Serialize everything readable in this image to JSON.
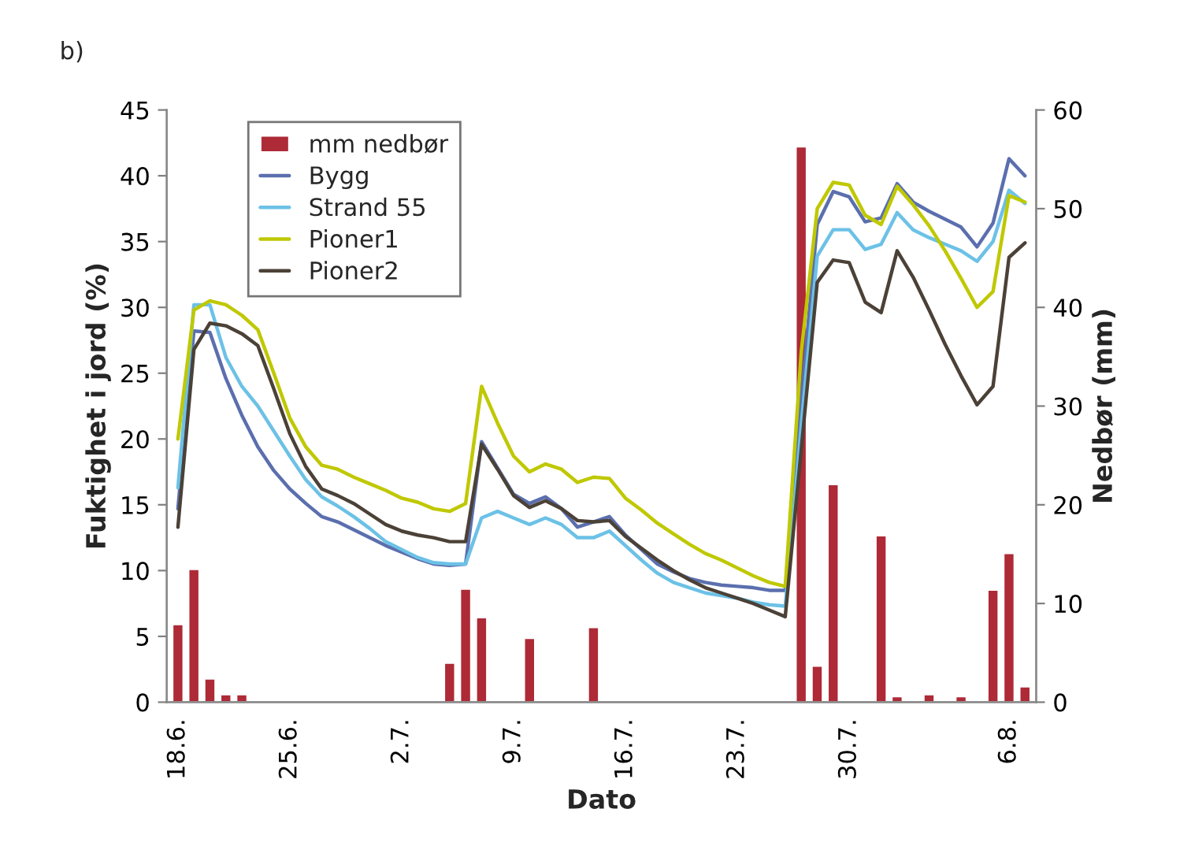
{
  "chart_data": {
    "type": "line",
    "annotations": [
      "b)"
    ],
    "xlabel": "Dato",
    "ylabel": "Fuktighet i jord (%)",
    "y2label": "Nedbør (mm)",
    "categories": [
      "18.6.",
      null,
      null,
      null,
      null,
      null,
      null,
      "25.6.",
      null,
      null,
      null,
      null,
      null,
      null,
      "2.7.",
      null,
      null,
      null,
      null,
      null,
      null,
      "9.7.",
      null,
      null,
      null,
      null,
      null,
      null,
      "16.7.",
      null,
      null,
      null,
      null,
      null,
      null,
      "23.7.",
      null,
      null,
      null,
      null,
      null,
      null,
      "30.7.",
      null,
      null,
      null,
      null,
      null,
      null,
      null,
      null,
      null,
      "6.8.",
      null
    ],
    "series": [
      {
        "name": "mm nedbør",
        "type": "bar",
        "axis": "y2",
        "color": "#ad2a36",
        "values": [
          7.9,
          13.5,
          2.4,
          0.8,
          0.8,
          null,
          null,
          null,
          null,
          null,
          null,
          null,
          null,
          null,
          null,
          null,
          null,
          4.0,
          11.5,
          8.6,
          null,
          null,
          6.5,
          null,
          null,
          null,
          7.6,
          0.1,
          null,
          null,
          null,
          null,
          null,
          null,
          null,
          null,
          null,
          null,
          null,
          56.3,
          3.7,
          22.1,
          null,
          null,
          16.9,
          0.6,
          null,
          0.8,
          0.2,
          0.6,
          null,
          11.4,
          15.1,
          1.6
        ]
      },
      {
        "name": "Bygg",
        "color": "#5b6fae",
        "values": [
          14.7,
          28.2,
          28.1,
          24.6,
          21.8,
          19.4,
          17.6,
          16.2,
          15.1,
          14.1,
          13.7,
          13.1,
          12.5,
          11.9,
          11.4,
          10.9,
          10.5,
          10.4,
          10.5,
          19.8,
          17.8,
          15.8,
          15.1,
          15.6,
          14.7,
          13.3,
          13.7,
          14.1,
          12.7,
          11.6,
          10.5,
          9.9,
          9.4,
          9.1,
          8.9,
          8.8,
          8.7,
          8.5,
          8.5,
          23.0,
          36.3,
          38.8,
          38.4,
          36.5,
          36.8,
          39.4,
          38.0,
          37.3,
          36.7,
          36.1,
          34.6,
          36.4,
          41.3,
          40.0
        ]
      },
      {
        "name": "Strand 55",
        "color": "#6cc1e6",
        "values": [
          16.3,
          30.2,
          30.2,
          26.2,
          24.0,
          22.5,
          20.6,
          18.7,
          16.9,
          15.6,
          14.9,
          14.1,
          13.2,
          12.2,
          11.6,
          11.0,
          10.6,
          10.5,
          10.5,
          14.0,
          14.5,
          14.0,
          13.5,
          14.0,
          13.5,
          12.5,
          12.5,
          13.0,
          11.9,
          10.8,
          9.8,
          9.1,
          8.7,
          8.3,
          8.1,
          7.9,
          7.6,
          7.4,
          7.3,
          21.0,
          33.9,
          35.9,
          35.9,
          34.4,
          34.8,
          37.2,
          35.9,
          35.3,
          34.8,
          34.3,
          33.5,
          35.0,
          38.9,
          37.9
        ]
      },
      {
        "name": "Pioner1",
        "color": "#bfc800",
        "values": [
          20.0,
          29.8,
          30.5,
          30.2,
          29.4,
          28.3,
          25.0,
          21.6,
          19.4,
          18.0,
          17.7,
          17.1,
          16.6,
          16.1,
          15.5,
          15.2,
          14.7,
          14.5,
          15.1,
          24.0,
          21.2,
          18.7,
          17.5,
          18.1,
          17.7,
          16.7,
          17.1,
          17.0,
          15.5,
          14.6,
          13.6,
          12.8,
          12.0,
          11.3,
          10.8,
          10.2,
          9.6,
          9.1,
          8.8,
          26.6,
          37.5,
          39.5,
          39.3,
          37.0,
          36.3,
          39.2,
          37.8,
          36.2,
          34.3,
          32.2,
          30.0,
          31.2,
          38.5,
          38.0
        ]
      },
      {
        "name": "Pioner2",
        "color": "#4b4137",
        "values": [
          13.3,
          26.8,
          28.8,
          28.6,
          28.0,
          27.1,
          23.8,
          20.4,
          17.9,
          16.2,
          15.7,
          15.1,
          14.3,
          13.5,
          13.0,
          12.7,
          12.5,
          12.2,
          12.2,
          19.6,
          17.7,
          15.7,
          14.8,
          15.3,
          14.7,
          13.8,
          13.7,
          13.8,
          12.6,
          11.7,
          10.8,
          10.0,
          9.3,
          8.7,
          8.3,
          7.9,
          7.5,
          7.0,
          6.5,
          19.2,
          31.9,
          33.6,
          33.4,
          30.4,
          29.6,
          34.3,
          32.3,
          29.8,
          27.2,
          24.8,
          22.6,
          24.0,
          33.8,
          34.9
        ]
      }
    ],
    "ylim": [
      0,
      45
    ],
    "yticks": [
      0,
      5,
      10,
      15,
      20,
      25,
      30,
      35,
      40,
      45
    ],
    "y2lim": [
      0,
      60
    ],
    "y2ticks": [
      0,
      10,
      20,
      30,
      40,
      50,
      60
    ],
    "legend": "top left",
    "grid": false,
    "marker": "none",
    "line_style": "solid"
  }
}
